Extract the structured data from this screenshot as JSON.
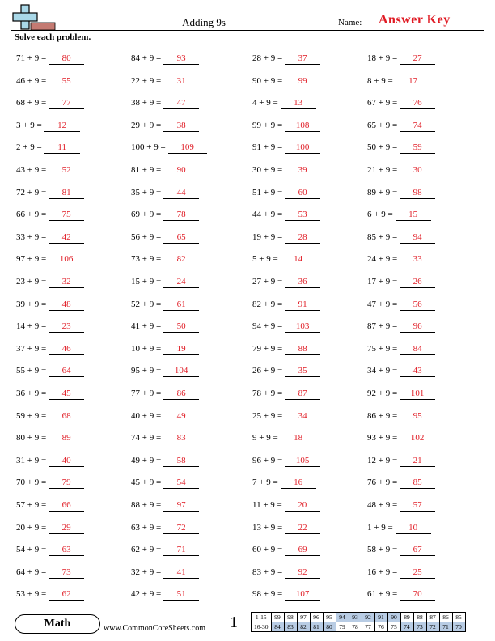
{
  "header": {
    "title": "Adding 9s",
    "name_label": "Name:",
    "answer_key": "Answer Key",
    "instructions": "Solve each problem."
  },
  "problems": [
    [
      {
        "q": "71 + 9 =",
        "a": "80"
      },
      {
        "q": "84 + 9 =",
        "a": "93"
      },
      {
        "q": "28 + 9 =",
        "a": "37"
      },
      {
        "q": "18 + 9 =",
        "a": "27"
      }
    ],
    [
      {
        "q": "46 + 9 =",
        "a": "55"
      },
      {
        "q": "22 + 9 =",
        "a": "31"
      },
      {
        "q": "90 + 9 =",
        "a": "99"
      },
      {
        "q": "8 + 9 =",
        "a": "17"
      }
    ],
    [
      {
        "q": "68 + 9 =",
        "a": "77"
      },
      {
        "q": "38 + 9 =",
        "a": "47"
      },
      {
        "q": "4 + 9 =",
        "a": "13"
      },
      {
        "q": "67 + 9 =",
        "a": "76"
      }
    ],
    [
      {
        "q": "3 + 9 =",
        "a": "12"
      },
      {
        "q": "29 + 9 =",
        "a": "38"
      },
      {
        "q": "99 + 9 =",
        "a": "108"
      },
      {
        "q": "65 + 9 =",
        "a": "74"
      }
    ],
    [
      {
        "q": "2 + 9 =",
        "a": "11"
      },
      {
        "q": "100 + 9 =",
        "a": "109"
      },
      {
        "q": "91 + 9 =",
        "a": "100"
      },
      {
        "q": "50 + 9 =",
        "a": "59"
      }
    ],
    [
      {
        "q": "43 + 9 =",
        "a": "52"
      },
      {
        "q": "81 + 9 =",
        "a": "90"
      },
      {
        "q": "30 + 9 =",
        "a": "39"
      },
      {
        "q": "21 + 9 =",
        "a": "30"
      }
    ],
    [
      {
        "q": "72 + 9 =",
        "a": "81"
      },
      {
        "q": "35 + 9 =",
        "a": "44"
      },
      {
        "q": "51 + 9 =",
        "a": "60"
      },
      {
        "q": "89 + 9 =",
        "a": "98"
      }
    ],
    [
      {
        "q": "66 + 9 =",
        "a": "75"
      },
      {
        "q": "69 + 9 =",
        "a": "78"
      },
      {
        "q": "44 + 9 =",
        "a": "53"
      },
      {
        "q": "6 + 9 =",
        "a": "15"
      }
    ],
    [
      {
        "q": "33 + 9 =",
        "a": "42"
      },
      {
        "q": "56 + 9 =",
        "a": "65"
      },
      {
        "q": "19 + 9 =",
        "a": "28"
      },
      {
        "q": "85 + 9 =",
        "a": "94"
      }
    ],
    [
      {
        "q": "97 + 9 =",
        "a": "106"
      },
      {
        "q": "73 + 9 =",
        "a": "82"
      },
      {
        "q": "5 + 9 =",
        "a": "14"
      },
      {
        "q": "24 + 9 =",
        "a": "33"
      }
    ],
    [
      {
        "q": "23 + 9 =",
        "a": "32"
      },
      {
        "q": "15 + 9 =",
        "a": "24"
      },
      {
        "q": "27 + 9 =",
        "a": "36"
      },
      {
        "q": "17 + 9 =",
        "a": "26"
      }
    ],
    [
      {
        "q": "39 + 9 =",
        "a": "48"
      },
      {
        "q": "52 + 9 =",
        "a": "61"
      },
      {
        "q": "82 + 9 =",
        "a": "91"
      },
      {
        "q": "47 + 9 =",
        "a": "56"
      }
    ],
    [
      {
        "q": "14 + 9 =",
        "a": "23"
      },
      {
        "q": "41 + 9 =",
        "a": "50"
      },
      {
        "q": "94 + 9 =",
        "a": "103"
      },
      {
        "q": "87 + 9 =",
        "a": "96"
      }
    ],
    [
      {
        "q": "37 + 9 =",
        "a": "46"
      },
      {
        "q": "10 + 9 =",
        "a": "19"
      },
      {
        "q": "79 + 9 =",
        "a": "88"
      },
      {
        "q": "75 + 9 =",
        "a": "84"
      }
    ],
    [
      {
        "q": "55 + 9 =",
        "a": "64"
      },
      {
        "q": "95 + 9 =",
        "a": "104"
      },
      {
        "q": "26 + 9 =",
        "a": "35"
      },
      {
        "q": "34 + 9 =",
        "a": "43"
      }
    ],
    [
      {
        "q": "36 + 9 =",
        "a": "45"
      },
      {
        "q": "77 + 9 =",
        "a": "86"
      },
      {
        "q": "78 + 9 =",
        "a": "87"
      },
      {
        "q": "92 + 9 =",
        "a": "101"
      }
    ],
    [
      {
        "q": "59 + 9 =",
        "a": "68"
      },
      {
        "q": "40 + 9 =",
        "a": "49"
      },
      {
        "q": "25 + 9 =",
        "a": "34"
      },
      {
        "q": "86 + 9 =",
        "a": "95"
      }
    ],
    [
      {
        "q": "80 + 9 =",
        "a": "89"
      },
      {
        "q": "74 + 9 =",
        "a": "83"
      },
      {
        "q": "9 + 9 =",
        "a": "18"
      },
      {
        "q": "93 + 9 =",
        "a": "102"
      }
    ],
    [
      {
        "q": "31 + 9 =",
        "a": "40"
      },
      {
        "q": "49 + 9 =",
        "a": "58"
      },
      {
        "q": "96 + 9 =",
        "a": "105"
      },
      {
        "q": "12 + 9 =",
        "a": "21"
      }
    ],
    [
      {
        "q": "70 + 9 =",
        "a": "79"
      },
      {
        "q": "45 + 9 =",
        "a": "54"
      },
      {
        "q": "7 + 9 =",
        "a": "16"
      },
      {
        "q": "76 + 9 =",
        "a": "85"
      }
    ],
    [
      {
        "q": "57 + 9 =",
        "a": "66"
      },
      {
        "q": "88 + 9 =",
        "a": "97"
      },
      {
        "q": "11 + 9 =",
        "a": "20"
      },
      {
        "q": "48 + 9 =",
        "a": "57"
      }
    ],
    [
      {
        "q": "20 + 9 =",
        "a": "29"
      },
      {
        "q": "63 + 9 =",
        "a": "72"
      },
      {
        "q": "13 + 9 =",
        "a": "22"
      },
      {
        "q": "1 + 9 =",
        "a": "10"
      }
    ],
    [
      {
        "q": "54 + 9 =",
        "a": "63"
      },
      {
        "q": "62 + 9 =",
        "a": "71"
      },
      {
        "q": "60 + 9 =",
        "a": "69"
      },
      {
        "q": "58 + 9 =",
        "a": "67"
      }
    ],
    [
      {
        "q": "64 + 9 =",
        "a": "73"
      },
      {
        "q": "32 + 9 =",
        "a": "41"
      },
      {
        "q": "83 + 9 =",
        "a": "92"
      },
      {
        "q": "16 + 9 =",
        "a": "25"
      }
    ],
    [
      {
        "q": "53 + 9 =",
        "a": "62"
      },
      {
        "q": "42 + 9 =",
        "a": "51"
      },
      {
        "q": "98 + 9 =",
        "a": "107"
      },
      {
        "q": "61 + 9 =",
        "a": "70"
      }
    ]
  ],
  "footer": {
    "brand": "Math",
    "site": "www.CommonCoreSheets.com",
    "page": "1",
    "score_rows": [
      {
        "label": "1-15",
        "cells": [
          "99",
          "98",
          "97",
          "96",
          "95",
          "94",
          "93",
          "92",
          "91",
          "90",
          "89",
          "88",
          "87",
          "86",
          "85"
        ]
      },
      {
        "label": "16-30",
        "cells": [
          "84",
          "83",
          "82",
          "81",
          "80",
          "79",
          "78",
          "77",
          "76",
          "75",
          "74",
          "73",
          "72",
          "71",
          "70"
        ]
      }
    ],
    "shade_color": "#b8cce4"
  },
  "colors": {
    "answer": "#e01b24"
  }
}
